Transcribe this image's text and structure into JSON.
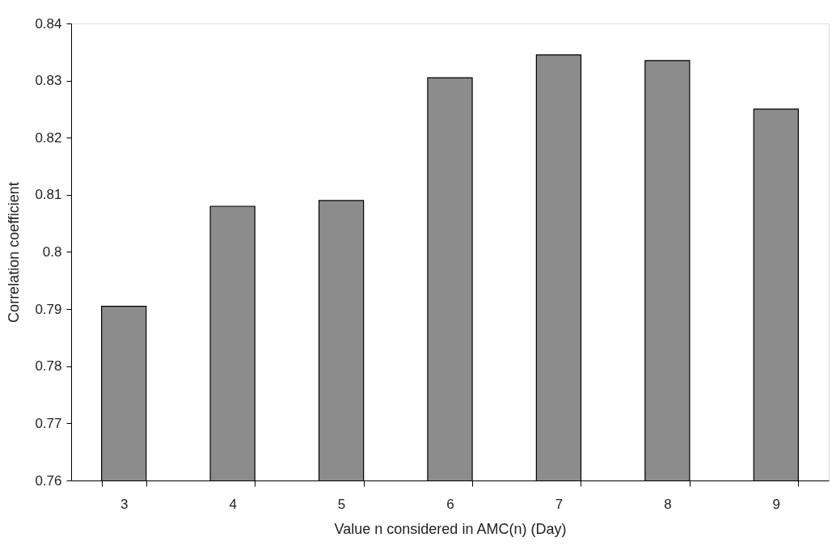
{
  "chart_data": {
    "type": "bar",
    "xlabel": "Value n considered in AMC(n) (Day)",
    "ylabel": "Correlation coefficient",
    "categories": [
      "3",
      "4",
      "5",
      "6",
      "7",
      "8",
      "9"
    ],
    "values": [
      0.7905,
      0.808,
      0.809,
      0.8305,
      0.8345,
      0.8335,
      0.825
    ],
    "color": "#8c8c8c",
    "ylim": [
      0.76,
      0.84
    ],
    "yticks": [
      0.76,
      0.77,
      0.78,
      0.79,
      0.8,
      0.81,
      0.82,
      0.83,
      0.84
    ],
    "grid": false
  }
}
